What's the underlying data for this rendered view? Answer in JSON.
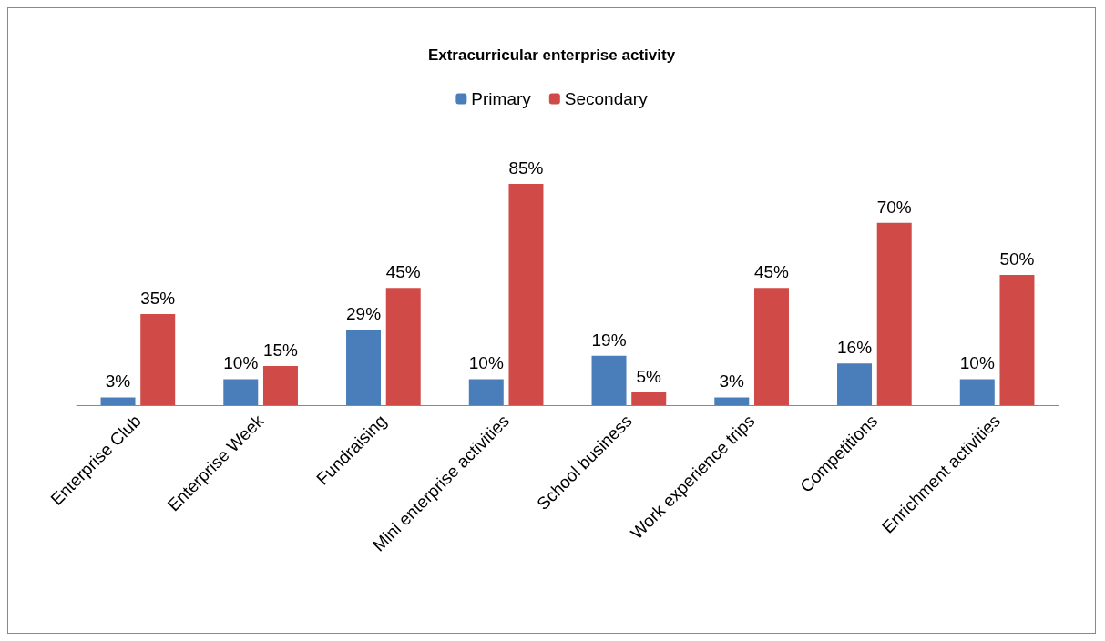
{
  "chart_data": {
    "type": "bar",
    "title": "Extracurricular enterprise activity",
    "categories": [
      "Enterprise Club",
      "Enterprise Week",
      "Fundraising",
      "Mini enterprise activities",
      "School business",
      "Work experience trips",
      "Competitions",
      "Enrichment activities"
    ],
    "series": [
      {
        "name": "Primary",
        "color": "#4a7ebb",
        "values": [
          3,
          10,
          29,
          10,
          19,
          3,
          16,
          10
        ],
        "value_labels": [
          "3%",
          "10%",
          "29%",
          "10%",
          "19%",
          "3%",
          "16%",
          "10%"
        ]
      },
      {
        "name": "Secondary",
        "color": "#d04a47",
        "values": [
          35,
          15,
          45,
          85,
          5,
          45,
          70,
          50
        ],
        "value_labels": [
          "35%",
          "15%",
          "45%",
          "85%",
          "5%",
          "45%",
          "70%",
          "50%"
        ]
      }
    ],
    "legend": "top"
  }
}
